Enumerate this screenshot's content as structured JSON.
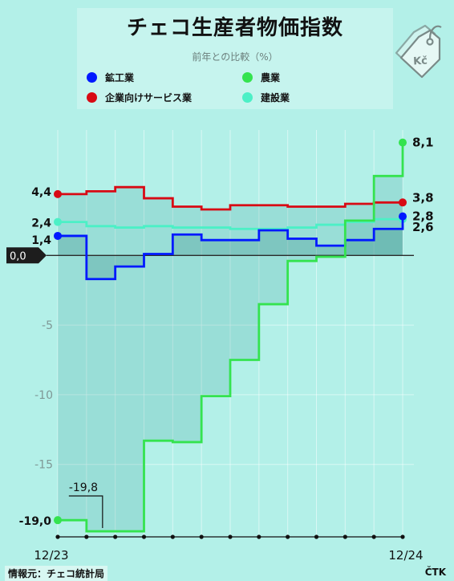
{
  "header": {
    "title": "チェコ生産者物価指数",
    "subtitle": "前年との比較（%）"
  },
  "legend": [
    {
      "label": "鉱工業",
      "color": "#0019ff"
    },
    {
      "label": "企業向けサービス業",
      "color": "#d80a14"
    },
    {
      "label": "農業",
      "color": "#34e34f"
    },
    {
      "label": "建設業",
      "color": "#4cf0c6"
    }
  ],
  "footer": {
    "source": "情報元：チェコ統計局",
    "agency": "ČTK"
  },
  "icon": {
    "name": "price-tag-icon",
    "text": "Kč"
  },
  "chart_data": {
    "type": "line",
    "step": true,
    "x": [
      "12/23",
      "1/24",
      "2/24",
      "3/24",
      "4/24",
      "5/24",
      "6/24",
      "7/24",
      "8/24",
      "9/24",
      "10/24",
      "11/24",
      "12/24"
    ],
    "x_tick_labels": [
      "12/23",
      "12/24"
    ],
    "y_ticks": [
      -15,
      -10,
      -5
    ],
    "zero_label": "0,0",
    "ylim": [
      -20.2,
      9.0
    ],
    "grid": true,
    "series": [
      {
        "name": "鉱工業",
        "color": "#0019ff",
        "values": [
          1.4,
          -1.7,
          -0.8,
          0.1,
          1.5,
          1.1,
          1.1,
          1.8,
          1.2,
          0.7,
          1.1,
          1.9,
          2.8
        ]
      },
      {
        "name": "企業向けサービス業",
        "color": "#d80a14",
        "values": [
          4.4,
          4.6,
          4.9,
          4.1,
          3.5,
          3.3,
          3.6,
          3.6,
          3.5,
          3.5,
          3.7,
          3.8,
          3.8
        ]
      },
      {
        "name": "農業",
        "color": "#34e34f",
        "values": [
          -19.0,
          -19.8,
          -19.8,
          -13.3,
          -13.4,
          -10.1,
          -7.5,
          -3.5,
          -0.4,
          -0.1,
          2.5,
          5.7,
          8.1
        ]
      },
      {
        "name": "建設業",
        "color": "#4cf0c6",
        "values": [
          2.4,
          2.1,
          2.0,
          2.1,
          2.0,
          2.0,
          1.9,
          1.9,
          2.0,
          2.2,
          2.4,
          2.6,
          2.6
        ]
      }
    ],
    "annotations": [
      {
        "label": "-19,8",
        "series": "農業",
        "index": 1
      }
    ],
    "end_labels": [
      {
        "series": "農業",
        "label": "8,1"
      },
      {
        "series": "企業向けサービス業",
        "label": "3,8"
      },
      {
        "series": "鉱工業",
        "label": "2,8"
      },
      {
        "series": "建設業",
        "label": "2,6"
      }
    ],
    "start_labels": [
      {
        "series": "企業向けサービス業",
        "label": "4,4"
      },
      {
        "series": "建設業",
        "label": "2,4"
      },
      {
        "series": "鉱工業",
        "label": "1,4"
      },
      {
        "series": "農業",
        "label": "-19,0"
      }
    ]
  }
}
